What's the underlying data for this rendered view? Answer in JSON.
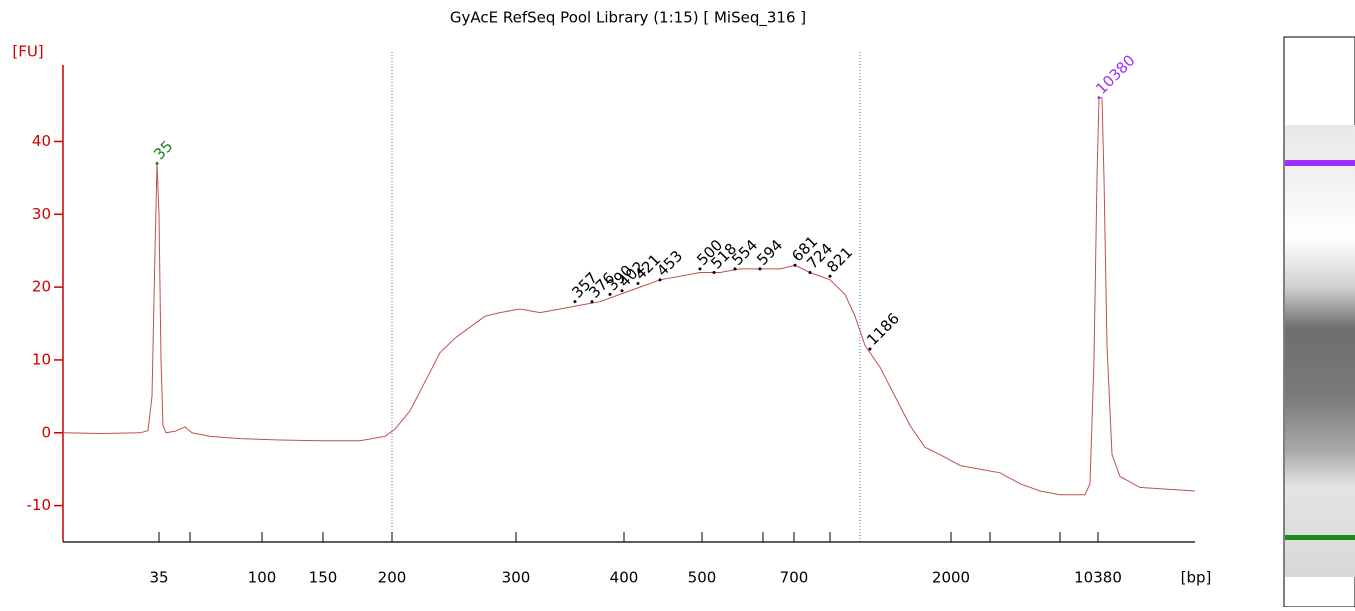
{
  "chart_data": {
    "type": "line",
    "title": "GyAcE RefSeq Pool Library (1:15)  [ MiSeq_316 ]",
    "y_label": "[FU]",
    "x_label": "[bp]",
    "xlim": [
      0,
      1132
    ],
    "ylim": [
      -15,
      50.5
    ],
    "yticks": [
      -10,
      0,
      10,
      20,
      30,
      40
    ],
    "xticks": [
      {
        "value": 96,
        "label": "35"
      },
      {
        "value": 199,
        "label": "100"
      },
      {
        "value": 260,
        "label": "150"
      },
      {
        "value": 329,
        "label": "200"
      },
      {
        "value": 453,
        "label": "300"
      },
      {
        "value": 561,
        "label": "400"
      },
      {
        "value": 639,
        "label": "500"
      },
      {
        "value": 731,
        "label": "700"
      },
      {
        "value": 888,
        "label": "2000"
      },
      {
        "value": 1035,
        "label": "10380"
      }
    ],
    "xticks_minor": [
      127,
      700,
      767,
      927,
      997
    ],
    "x": [
      0,
      37,
      77,
      85,
      89,
      92,
      94,
      96,
      98,
      100,
      103,
      112,
      122,
      129,
      147,
      177,
      217,
      257,
      297,
      322,
      332,
      347,
      362,
      377,
      392,
      407,
      422,
      437,
      457,
      477,
      497,
      517,
      537,
      557,
      577,
      597,
      617,
      637,
      657,
      677,
      697,
      717,
      732,
      747,
      767,
      782,
      792,
      802,
      817,
      832,
      847,
      862,
      877,
      897,
      917,
      937,
      957,
      977,
      997,
      1022,
      1027,
      1031,
      1034,
      1036,
      1039,
      1041,
      1044,
      1049,
      1057,
      1077,
      1097,
      1132
    ],
    "series": [
      {
        "color": "#c0504d",
        "values": [
          0,
          -0.1,
          0,
          0.3,
          5,
          25,
          37,
          30,
          10,
          1,
          0,
          0.2,
          0.8,
          0,
          -0.5,
          -0.8,
          -1,
          -1.1,
          -1.1,
          -0.5,
          0.5,
          3,
          7,
          11,
          13,
          14.5,
          16,
          16.5,
          17,
          16.5,
          17,
          17.5,
          18,
          19,
          20,
          21,
          21.5,
          22,
          22,
          22.5,
          22.5,
          22.5,
          23,
          22,
          21,
          19,
          16,
          12,
          9,
          5,
          1,
          -2,
          -3,
          -4.5,
          -5,
          -5.5,
          -7,
          -8,
          -8.5,
          -8.5,
          -7,
          10,
          35,
          46,
          46,
          35,
          12,
          -3,
          -6,
          -7.5,
          -7.7,
          -8
        ]
      }
    ],
    "peaks": [
      {
        "size": 35,
        "x": 94,
        "y": 37,
        "color": "#1a7f1a"
      },
      {
        "size": 357,
        "x": 512,
        "y": 18,
        "color": "#000000"
      },
      {
        "size": 376,
        "x": 529,
        "y": 18,
        "color": "#000000"
      },
      {
        "size": 390,
        "x": 547,
        "y": 19,
        "color": "#000000"
      },
      {
        "size": 402,
        "x": 559,
        "y": 19.5,
        "color": "#000000"
      },
      {
        "size": 421,
        "x": 575,
        "y": 20.5,
        "color": "#000000"
      },
      {
        "size": 453,
        "x": 597,
        "y": 21,
        "color": "#000000"
      },
      {
        "size": 500,
        "x": 637,
        "y": 22.5,
        "color": "#000000"
      },
      {
        "size": 518,
        "x": 651,
        "y": 22,
        "color": "#000000"
      },
      {
        "size": 554,
        "x": 672,
        "y": 22.5,
        "color": "#000000"
      },
      {
        "size": 594,
        "x": 697,
        "y": 22.5,
        "color": "#000000"
      },
      {
        "size": 681,
        "x": 732,
        "y": 23,
        "color": "#000000"
      },
      {
        "size": 724,
        "x": 747,
        "y": 22,
        "color": "#000000"
      },
      {
        "size": 821,
        "x": 767,
        "y": 21.5,
        "color": "#000000"
      },
      {
        "size": 1186,
        "x": 807,
        "y": 11.5,
        "color": "#000000"
      },
      {
        "size": 10380,
        "x": 1036,
        "y": 46,
        "color": "#9b30ff"
      }
    ]
  }
}
